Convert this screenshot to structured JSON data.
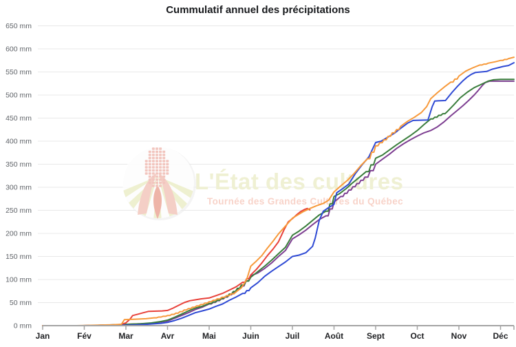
{
  "title": "Cummulatif annuel des précipitations",
  "watermark": {
    "main": "L'État des cultures",
    "subtitle": "Tournée des Grandes Cultures du Québec",
    "main_color": "#eff0d3",
    "subtitle_color": "#f8d3c9",
    "logo": {
      "circle_color": "#ffffff",
      "stripe_color": "#eef0d0",
      "kernel_color": "#f2c5be",
      "leaf_color": "#f4cfc6",
      "flame_color": "#eeb4a8"
    }
  },
  "colors": {
    "background": "#ffffff",
    "grid": "#e8e8e8",
    "axis": "#a3a3a3",
    "tick": "#a3a3a3",
    "y_label": "#5f6368",
    "x_label": "#202124",
    "title": "#17191c"
  },
  "chart_data": {
    "type": "line",
    "title": "Cummulatif annuel des précipitations",
    "unit": "mm",
    "grid": "horizontal",
    "legend": "none",
    "ylim": [
      0,
      650
    ],
    "y_ticks": [
      0,
      50,
      100,
      150,
      200,
      250,
      300,
      350,
      400,
      450,
      500,
      550,
      600,
      650
    ],
    "y_tick_labels": [
      "0 mm",
      "50 mm",
      "100 mm",
      "150 mm",
      "200 mm",
      "250 mm",
      "300 mm",
      "350 mm",
      "400 mm",
      "450 mm",
      "500 mm",
      "550 mm",
      "600 mm",
      "650 mm"
    ],
    "x_tick_labels": [
      "Jan",
      "Fév",
      "Mar",
      "Avr",
      "Mai",
      "Juin",
      "Juil",
      "Août",
      "Sept",
      "Oct",
      "Nov",
      "Déc"
    ],
    "x_month_start_days": [
      0,
      31,
      59,
      90,
      120,
      151,
      181,
      212,
      243,
      273,
      304,
      334,
      365
    ],
    "x_domain_days": [
      0,
      344
    ],
    "series": [
      {
        "name": "série violette",
        "color": "#7d3e91",
        "points": [
          [
            0,
            0
          ],
          [
            30,
            0
          ],
          [
            45,
            1
          ],
          [
            60,
            3
          ],
          [
            70,
            4
          ],
          [
            78,
            5
          ],
          [
            85,
            8
          ],
          [
            90,
            10
          ],
          [
            95,
            16
          ],
          [
            100,
            22
          ],
          [
            105,
            28
          ],
          [
            110,
            35
          ],
          [
            115,
            40
          ],
          [
            120,
            47
          ],
          [
            126,
            54
          ],
          [
            132,
            62
          ],
          [
            138,
            72
          ],
          [
            144,
            86
          ],
          [
            151,
            108
          ],
          [
            156,
            114
          ],
          [
            161,
            124
          ],
          [
            166,
            136
          ],
          [
            171,
            150
          ],
          [
            176,
            163
          ],
          [
            181,
            188
          ],
          [
            186,
            197
          ],
          [
            191,
            207
          ],
          [
            196,
            219
          ],
          [
            201,
            230
          ],
          [
            206,
            238
          ],
          [
            212,
            268
          ],
          [
            217,
            280
          ],
          [
            223,
            294
          ],
          [
            229,
            308
          ],
          [
            235,
            322
          ],
          [
            243,
            350
          ],
          [
            248,
            361
          ],
          [
            253,
            372
          ],
          [
            258,
            384
          ],
          [
            263,
            394
          ],
          [
            268,
            403
          ],
          [
            273,
            411
          ],
          [
            278,
            418
          ],
          [
            283,
            423
          ],
          [
            288,
            431
          ],
          [
            293,
            442
          ],
          [
            298,
            455
          ],
          [
            303,
            467
          ],
          [
            307,
            477
          ],
          [
            311,
            488
          ],
          [
            315,
            500
          ],
          [
            318,
            510
          ],
          [
            321,
            521
          ],
          [
            323,
            527
          ],
          [
            326,
            530
          ],
          [
            334,
            530
          ],
          [
            344,
            530
          ]
        ]
      },
      {
        "name": "série verte",
        "color": "#397d3b",
        "points": [
          [
            0,
            0
          ],
          [
            30,
            0
          ],
          [
            45,
            1
          ],
          [
            60,
            3
          ],
          [
            70,
            4
          ],
          [
            78,
            6
          ],
          [
            85,
            9
          ],
          [
            90,
            12
          ],
          [
            95,
            18
          ],
          [
            100,
            25
          ],
          [
            105,
            32
          ],
          [
            110,
            38
          ],
          [
            115,
            42
          ],
          [
            120,
            48
          ],
          [
            126,
            55
          ],
          [
            132,
            63
          ],
          [
            138,
            74
          ],
          [
            144,
            88
          ],
          [
            151,
            105
          ],
          [
            156,
            117
          ],
          [
            161,
            129
          ],
          [
            166,
            142
          ],
          [
            171,
            156
          ],
          [
            176,
            170
          ],
          [
            181,
            196
          ],
          [
            186,
            205
          ],
          [
            191,
            216
          ],
          [
            196,
            228
          ],
          [
            201,
            240
          ],
          [
            206,
            248
          ],
          [
            212,
            280
          ],
          [
            216,
            286
          ],
          [
            221,
            297
          ],
          [
            226,
            310
          ],
          [
            231,
            322
          ],
          [
            236,
            334
          ],
          [
            243,
            363
          ],
          [
            248,
            370
          ],
          [
            253,
            381
          ],
          [
            258,
            392
          ],
          [
            263,
            402
          ],
          [
            268,
            412
          ],
          [
            273,
            423
          ],
          [
            278,
            436
          ],
          [
            283,
            448
          ],
          [
            289,
            456
          ],
          [
            295,
            463
          ],
          [
            300,
            478
          ],
          [
            305,
            494
          ],
          [
            310,
            506
          ],
          [
            315,
            516
          ],
          [
            320,
            523
          ],
          [
            325,
            530
          ],
          [
            329,
            533
          ],
          [
            334,
            534
          ],
          [
            344,
            534
          ]
        ]
      },
      {
        "name": "série rouge",
        "color": "#e8413a",
        "points": [
          [
            0,
            0
          ],
          [
            30,
            0
          ],
          [
            45,
            1
          ],
          [
            55,
            2
          ],
          [
            59,
            6
          ],
          [
            62,
            14
          ],
          [
            64,
            22
          ],
          [
            68,
            25
          ],
          [
            72,
            28
          ],
          [
            76,
            31
          ],
          [
            86,
            32
          ],
          [
            90,
            33
          ],
          [
            94,
            38
          ],
          [
            98,
            44
          ],
          [
            102,
            50
          ],
          [
            106,
            54
          ],
          [
            110,
            56
          ],
          [
            114,
            58
          ],
          [
            120,
            60
          ],
          [
            125,
            65
          ],
          [
            130,
            70
          ],
          [
            135,
            77
          ],
          [
            140,
            84
          ],
          [
            145,
            94
          ],
          [
            151,
            110
          ],
          [
            155,
            122
          ],
          [
            159,
            136
          ],
          [
            163,
            152
          ],
          [
            167,
            166
          ],
          [
            171,
            182
          ],
          [
            175,
            208
          ],
          [
            178,
            225
          ],
          [
            181,
            232
          ],
          [
            184,
            240
          ],
          [
            187,
            247
          ],
          [
            190,
            252
          ],
          [
            192,
            254
          ],
          [
            194,
            251
          ]
        ]
      },
      {
        "name": "série bleue",
        "color": "#2e49d4",
        "points": [
          [
            0,
            0
          ],
          [
            30,
            0
          ],
          [
            45,
            1
          ],
          [
            60,
            1
          ],
          [
            68,
            2
          ],
          [
            75,
            3
          ],
          [
            85,
            5
          ],
          [
            90,
            7
          ],
          [
            95,
            11
          ],
          [
            100,
            16
          ],
          [
            105,
            22
          ],
          [
            110,
            28
          ],
          [
            115,
            32
          ],
          [
            120,
            36
          ],
          [
            125,
            42
          ],
          [
            130,
            47
          ],
          [
            135,
            55
          ],
          [
            140,
            62
          ],
          [
            145,
            70
          ],
          [
            151,
            82
          ],
          [
            156,
            93
          ],
          [
            161,
            107
          ],
          [
            166,
            118
          ],
          [
            171,
            128
          ],
          [
            176,
            138
          ],
          [
            181,
            150
          ],
          [
            186,
            153
          ],
          [
            191,
            158
          ],
          [
            196,
            172
          ],
          [
            198,
            190
          ],
          [
            201,
            228
          ],
          [
            204,
            248
          ],
          [
            208,
            256
          ],
          [
            212,
            263
          ],
          [
            214,
            288
          ],
          [
            218,
            296
          ],
          [
            223,
            307
          ],
          [
            228,
            330
          ],
          [
            233,
            349
          ],
          [
            238,
            366
          ],
          [
            243,
            397
          ],
          [
            247,
            400
          ],
          [
            252,
            409
          ],
          [
            257,
            418
          ],
          [
            262,
            430
          ],
          [
            266,
            439
          ],
          [
            270,
            445
          ],
          [
            281,
            446
          ],
          [
            284,
            474
          ],
          [
            286,
            487
          ],
          [
            294,
            488
          ],
          [
            299,
            506
          ],
          [
            303,
            519
          ],
          [
            307,
            531
          ],
          [
            310,
            539
          ],
          [
            313,
            545
          ],
          [
            316,
            549
          ],
          [
            324,
            551
          ],
          [
            328,
            556
          ],
          [
            332,
            559
          ],
          [
            336,
            562
          ],
          [
            340,
            564
          ],
          [
            344,
            570
          ]
        ]
      },
      {
        "name": "série orange",
        "color": "#f7993a",
        "points": [
          [
            0,
            0
          ],
          [
            25,
            0
          ],
          [
            40,
            1
          ],
          [
            50,
            2
          ],
          [
            56,
            3
          ],
          [
            58,
            13
          ],
          [
            66,
            14
          ],
          [
            74,
            15
          ],
          [
            80,
            17
          ],
          [
            90,
            22
          ],
          [
            96,
            27
          ],
          [
            102,
            34
          ],
          [
            108,
            40
          ],
          [
            114,
            46
          ],
          [
            120,
            52
          ],
          [
            126,
            58
          ],
          [
            133,
            65
          ],
          [
            140,
            73
          ],
          [
            144,
            82
          ],
          [
            148,
            100
          ],
          [
            151,
            129
          ],
          [
            155,
            140
          ],
          [
            159,
            152
          ],
          [
            163,
            168
          ],
          [
            167,
            183
          ],
          [
            171,
            199
          ],
          [
            176,
            216
          ],
          [
            181,
            233
          ],
          [
            185,
            240
          ],
          [
            189,
            247
          ],
          [
            194,
            254
          ],
          [
            199,
            260
          ],
          [
            204,
            265
          ],
          [
            208,
            272
          ],
          [
            212,
            290
          ],
          [
            217,
            303
          ],
          [
            222,
            315
          ],
          [
            227,
            330
          ],
          [
            232,
            347
          ],
          [
            237,
            362
          ],
          [
            243,
            390
          ],
          [
            249,
            403
          ],
          [
            255,
            418
          ],
          [
            261,
            432
          ],
          [
            266,
            443
          ],
          [
            271,
            452
          ],
          [
            276,
            462
          ],
          [
            280,
            475
          ],
          [
            283,
            492
          ],
          [
            288,
            505
          ],
          [
            293,
            517
          ],
          [
            298,
            528
          ],
          [
            304,
            541
          ],
          [
            309,
            552
          ],
          [
            314,
            559
          ],
          [
            319,
            565
          ],
          [
            325,
            569
          ],
          [
            330,
            572
          ],
          [
            334,
            575
          ],
          [
            340,
            579
          ],
          [
            344,
            582
          ]
        ]
      }
    ]
  }
}
